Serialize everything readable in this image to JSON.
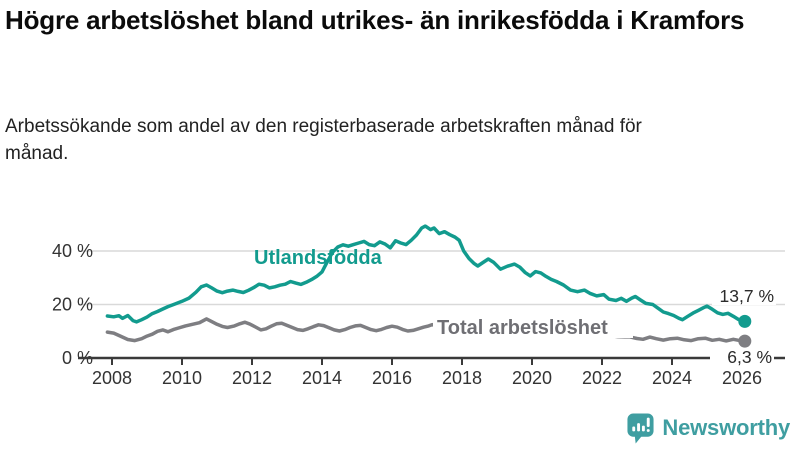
{
  "title": "Högre arbetslöshet bland utrikes- än inrikesfödda i Kramfors",
  "subtitle": "Arbetssökande som andel av den registerbaserade arbetskraften månad för månad.",
  "branding": {
    "logo_text": "Newsworthy",
    "icon": "bar-chart-speech-bubble-icon",
    "color": "#3F9EA1"
  },
  "colors": {
    "accent_teal": "#129B8E",
    "line_gray": "#7E7E82",
    "gridline": "#d9d9d9",
    "axis": "#3a3a3a",
    "axis_text": "#333333",
    "annotation_text": "#2b2b2b"
  },
  "chart_data": {
    "type": "line",
    "title": "Högre arbetslöshet bland utrikes- än inrikesfödda i Kramfors",
    "subtitle": "Arbetssökande som andel av den registerbaserade arbetskraften månad för månad.",
    "grid": "horizontal",
    "legend_position": "inline-labels",
    "x_axis": {
      "ticks": [
        "2008",
        "2010",
        "2012",
        "2014",
        "2016",
        "2018",
        "2020",
        "2022",
        "2024",
        "2026"
      ],
      "range": [
        2007.0,
        2027.2
      ]
    },
    "y_axis": {
      "unit": "%",
      "range": [
        0,
        52
      ],
      "ticks": [
        {
          "value": 0,
          "label": "0 %"
        },
        {
          "value": 20,
          "label": "20 %"
        },
        {
          "value": 40,
          "label": "40 %"
        }
      ]
    },
    "series": [
      {
        "name": "Utlandsfödda",
        "color": "#129B8E",
        "end_label": "13,7 %",
        "last_value": 13.7,
        "points": [
          [
            2007.87,
            15.7
          ],
          [
            2008.05,
            15.4
          ],
          [
            2008.2,
            15.8
          ],
          [
            2008.3,
            14.8
          ],
          [
            2008.45,
            15.9
          ],
          [
            2008.6,
            14.0
          ],
          [
            2008.7,
            13.5
          ],
          [
            2008.85,
            14.3
          ],
          [
            2009.0,
            15.3
          ],
          [
            2009.15,
            16.6
          ],
          [
            2009.3,
            17.4
          ],
          [
            2009.45,
            18.3
          ],
          [
            2009.6,
            19.2
          ],
          [
            2009.8,
            20.2
          ],
          [
            2010.0,
            21.2
          ],
          [
            2010.2,
            22.4
          ],
          [
            2010.4,
            24.6
          ],
          [
            2010.55,
            26.6
          ],
          [
            2010.7,
            27.3
          ],
          [
            2010.85,
            26.2
          ],
          [
            2011.0,
            25.0
          ],
          [
            2011.15,
            24.4
          ],
          [
            2011.3,
            25.0
          ],
          [
            2011.45,
            25.4
          ],
          [
            2011.6,
            24.9
          ],
          [
            2011.75,
            24.5
          ],
          [
            2011.9,
            25.3
          ],
          [
            2012.05,
            26.3
          ],
          [
            2012.2,
            27.6
          ],
          [
            2012.35,
            27.2
          ],
          [
            2012.5,
            26.2
          ],
          [
            2012.65,
            26.6
          ],
          [
            2012.8,
            27.2
          ],
          [
            2012.95,
            27.6
          ],
          [
            2013.1,
            28.6
          ],
          [
            2013.25,
            28.0
          ],
          [
            2013.4,
            27.5
          ],
          [
            2013.55,
            28.3
          ],
          [
            2013.7,
            29.3
          ],
          [
            2013.85,
            30.5
          ],
          [
            2014.0,
            32.2
          ],
          [
            2014.15,
            36.0
          ],
          [
            2014.3,
            39.5
          ],
          [
            2014.45,
            41.5
          ],
          [
            2014.6,
            42.3
          ],
          [
            2014.75,
            41.8
          ],
          [
            2014.9,
            42.4
          ],
          [
            2015.05,
            43.0
          ],
          [
            2015.2,
            43.6
          ],
          [
            2015.35,
            42.4
          ],
          [
            2015.5,
            42.0
          ],
          [
            2015.65,
            43.4
          ],
          [
            2015.8,
            42.6
          ],
          [
            2015.95,
            41.2
          ],
          [
            2016.1,
            43.8
          ],
          [
            2016.25,
            43.0
          ],
          [
            2016.4,
            42.4
          ],
          [
            2016.55,
            44.0
          ],
          [
            2016.7,
            46.0
          ],
          [
            2016.85,
            48.6
          ],
          [
            2016.95,
            49.3
          ],
          [
            2017.1,
            48.0
          ],
          [
            2017.2,
            48.6
          ],
          [
            2017.35,
            46.5
          ],
          [
            2017.5,
            47.2
          ],
          [
            2017.65,
            46.1
          ],
          [
            2017.8,
            45.2
          ],
          [
            2017.92,
            44.0
          ],
          [
            2018.05,
            40.0
          ],
          [
            2018.2,
            37.2
          ],
          [
            2018.35,
            35.3
          ],
          [
            2018.45,
            34.4
          ],
          [
            2018.6,
            35.7
          ],
          [
            2018.75,
            37.0
          ],
          [
            2018.9,
            35.8
          ],
          [
            2019.1,
            33.2
          ],
          [
            2019.3,
            34.3
          ],
          [
            2019.5,
            35.1
          ],
          [
            2019.65,
            34.0
          ],
          [
            2019.8,
            32.0
          ],
          [
            2019.95,
            30.7
          ],
          [
            2020.1,
            32.3
          ],
          [
            2020.25,
            31.8
          ],
          [
            2020.4,
            30.5
          ],
          [
            2020.55,
            29.4
          ],
          [
            2020.7,
            28.6
          ],
          [
            2020.9,
            27.3
          ],
          [
            2021.1,
            25.4
          ],
          [
            2021.3,
            24.8
          ],
          [
            2021.5,
            25.4
          ],
          [
            2021.65,
            24.2
          ],
          [
            2021.85,
            23.2
          ],
          [
            2022.05,
            23.7
          ],
          [
            2022.2,
            22.0
          ],
          [
            2022.4,
            21.5
          ],
          [
            2022.55,
            22.3
          ],
          [
            2022.7,
            21.2
          ],
          [
            2022.85,
            22.4
          ],
          [
            2022.95,
            23.0
          ],
          [
            2023.1,
            21.7
          ],
          [
            2023.25,
            20.4
          ],
          [
            2023.45,
            20.0
          ],
          [
            2023.6,
            18.6
          ],
          [
            2023.75,
            17.2
          ],
          [
            2023.9,
            16.6
          ],
          [
            2024.05,
            15.9
          ],
          [
            2024.2,
            14.8
          ],
          [
            2024.3,
            14.3
          ],
          [
            2024.45,
            15.6
          ],
          [
            2024.6,
            16.8
          ],
          [
            2024.75,
            17.8
          ],
          [
            2024.9,
            18.8
          ],
          [
            2025.0,
            19.4
          ],
          [
            2025.15,
            18.2
          ],
          [
            2025.3,
            16.9
          ],
          [
            2025.45,
            16.3
          ],
          [
            2025.6,
            16.7
          ],
          [
            2025.75,
            15.6
          ],
          [
            2025.9,
            14.4
          ],
          [
            2026.08,
            13.7
          ]
        ]
      },
      {
        "name": "Total arbetslöshet",
        "color": "#7E7E82",
        "end_label": "6,3 %",
        "last_value": 6.3,
        "points": [
          [
            2007.87,
            9.7
          ],
          [
            2008.05,
            9.3
          ],
          [
            2008.2,
            8.4
          ],
          [
            2008.45,
            6.9
          ],
          [
            2008.65,
            6.5
          ],
          [
            2008.85,
            7.2
          ],
          [
            2009.0,
            8.2
          ],
          [
            2009.15,
            8.9
          ],
          [
            2009.3,
            10.0
          ],
          [
            2009.45,
            10.5
          ],
          [
            2009.6,
            9.8
          ],
          [
            2009.75,
            10.6
          ],
          [
            2009.9,
            11.2
          ],
          [
            2010.1,
            12.0
          ],
          [
            2010.3,
            12.6
          ],
          [
            2010.5,
            13.2
          ],
          [
            2010.7,
            14.6
          ],
          [
            2010.85,
            13.6
          ],
          [
            2011.0,
            12.6
          ],
          [
            2011.15,
            11.8
          ],
          [
            2011.3,
            11.4
          ],
          [
            2011.5,
            12.0
          ],
          [
            2011.65,
            12.8
          ],
          [
            2011.8,
            13.4
          ],
          [
            2011.95,
            12.6
          ],
          [
            2012.1,
            11.6
          ],
          [
            2012.25,
            10.5
          ],
          [
            2012.4,
            10.9
          ],
          [
            2012.55,
            11.9
          ],
          [
            2012.7,
            12.8
          ],
          [
            2012.85,
            13.0
          ],
          [
            2013.0,
            12.2
          ],
          [
            2013.15,
            11.4
          ],
          [
            2013.3,
            10.6
          ],
          [
            2013.45,
            10.3
          ],
          [
            2013.6,
            10.9
          ],
          [
            2013.75,
            11.7
          ],
          [
            2013.9,
            12.4
          ],
          [
            2014.05,
            12.1
          ],
          [
            2014.2,
            11.3
          ],
          [
            2014.35,
            10.5
          ],
          [
            2014.5,
            10.1
          ],
          [
            2014.65,
            10.6
          ],
          [
            2014.8,
            11.4
          ],
          [
            2014.95,
            12.0
          ],
          [
            2015.1,
            12.2
          ],
          [
            2015.25,
            11.4
          ],
          [
            2015.4,
            10.6
          ],
          [
            2015.55,
            10.2
          ],
          [
            2015.7,
            10.7
          ],
          [
            2015.85,
            11.4
          ],
          [
            2016.0,
            11.9
          ],
          [
            2016.15,
            11.5
          ],
          [
            2016.3,
            10.7
          ],
          [
            2016.45,
            10.1
          ],
          [
            2016.6,
            10.3
          ],
          [
            2016.75,
            10.9
          ],
          [
            2016.9,
            11.5
          ],
          [
            2017.05,
            12.0
          ],
          [
            2017.15,
            12.5
          ],
          [
            2017.3,
            11.7
          ],
          [
            2017.45,
            10.9
          ],
          [
            2017.6,
            10.4
          ],
          [
            2017.75,
            10.7
          ],
          [
            2017.9,
            11.1
          ],
          [
            2018.05,
            11.2
          ],
          [
            2018.25,
            10.6
          ],
          [
            2018.45,
            10.0
          ],
          [
            2018.65,
            10.1
          ],
          [
            2018.85,
            10.5
          ],
          [
            2019.05,
            10.4
          ],
          [
            2019.25,
            10.0
          ],
          [
            2019.45,
            9.7
          ],
          [
            2019.65,
            9.6
          ],
          [
            2019.85,
            10.1
          ],
          [
            2020.05,
            10.5
          ],
          [
            2020.25,
            10.3
          ],
          [
            2020.45,
            10.0
          ],
          [
            2020.65,
            9.8
          ],
          [
            2020.85,
            9.8
          ],
          [
            2021.05,
            9.6
          ],
          [
            2021.25,
            9.3
          ],
          [
            2021.45,
            9.0
          ],
          [
            2021.65,
            8.8
          ],
          [
            2021.85,
            8.7
          ],
          [
            2022.05,
            8.5
          ],
          [
            2022.25,
            8.3
          ],
          [
            2022.45,
            8.0
          ],
          [
            2022.65,
            7.9
          ],
          [
            2022.8,
            7.9
          ],
          [
            2023.0,
            7.3
          ],
          [
            2023.17,
            7.0
          ],
          [
            2023.37,
            7.8
          ],
          [
            2023.55,
            7.2
          ],
          [
            2023.75,
            6.7
          ],
          [
            2023.95,
            7.2
          ],
          [
            2024.15,
            7.4
          ],
          [
            2024.35,
            6.8
          ],
          [
            2024.55,
            6.5
          ],
          [
            2024.75,
            7.2
          ],
          [
            2024.95,
            7.4
          ],
          [
            2025.15,
            6.6
          ],
          [
            2025.35,
            7.0
          ],
          [
            2025.55,
            6.4
          ],
          [
            2025.75,
            7.0
          ],
          [
            2025.9,
            6.6
          ],
          [
            2026.08,
            6.3
          ]
        ]
      }
    ]
  }
}
